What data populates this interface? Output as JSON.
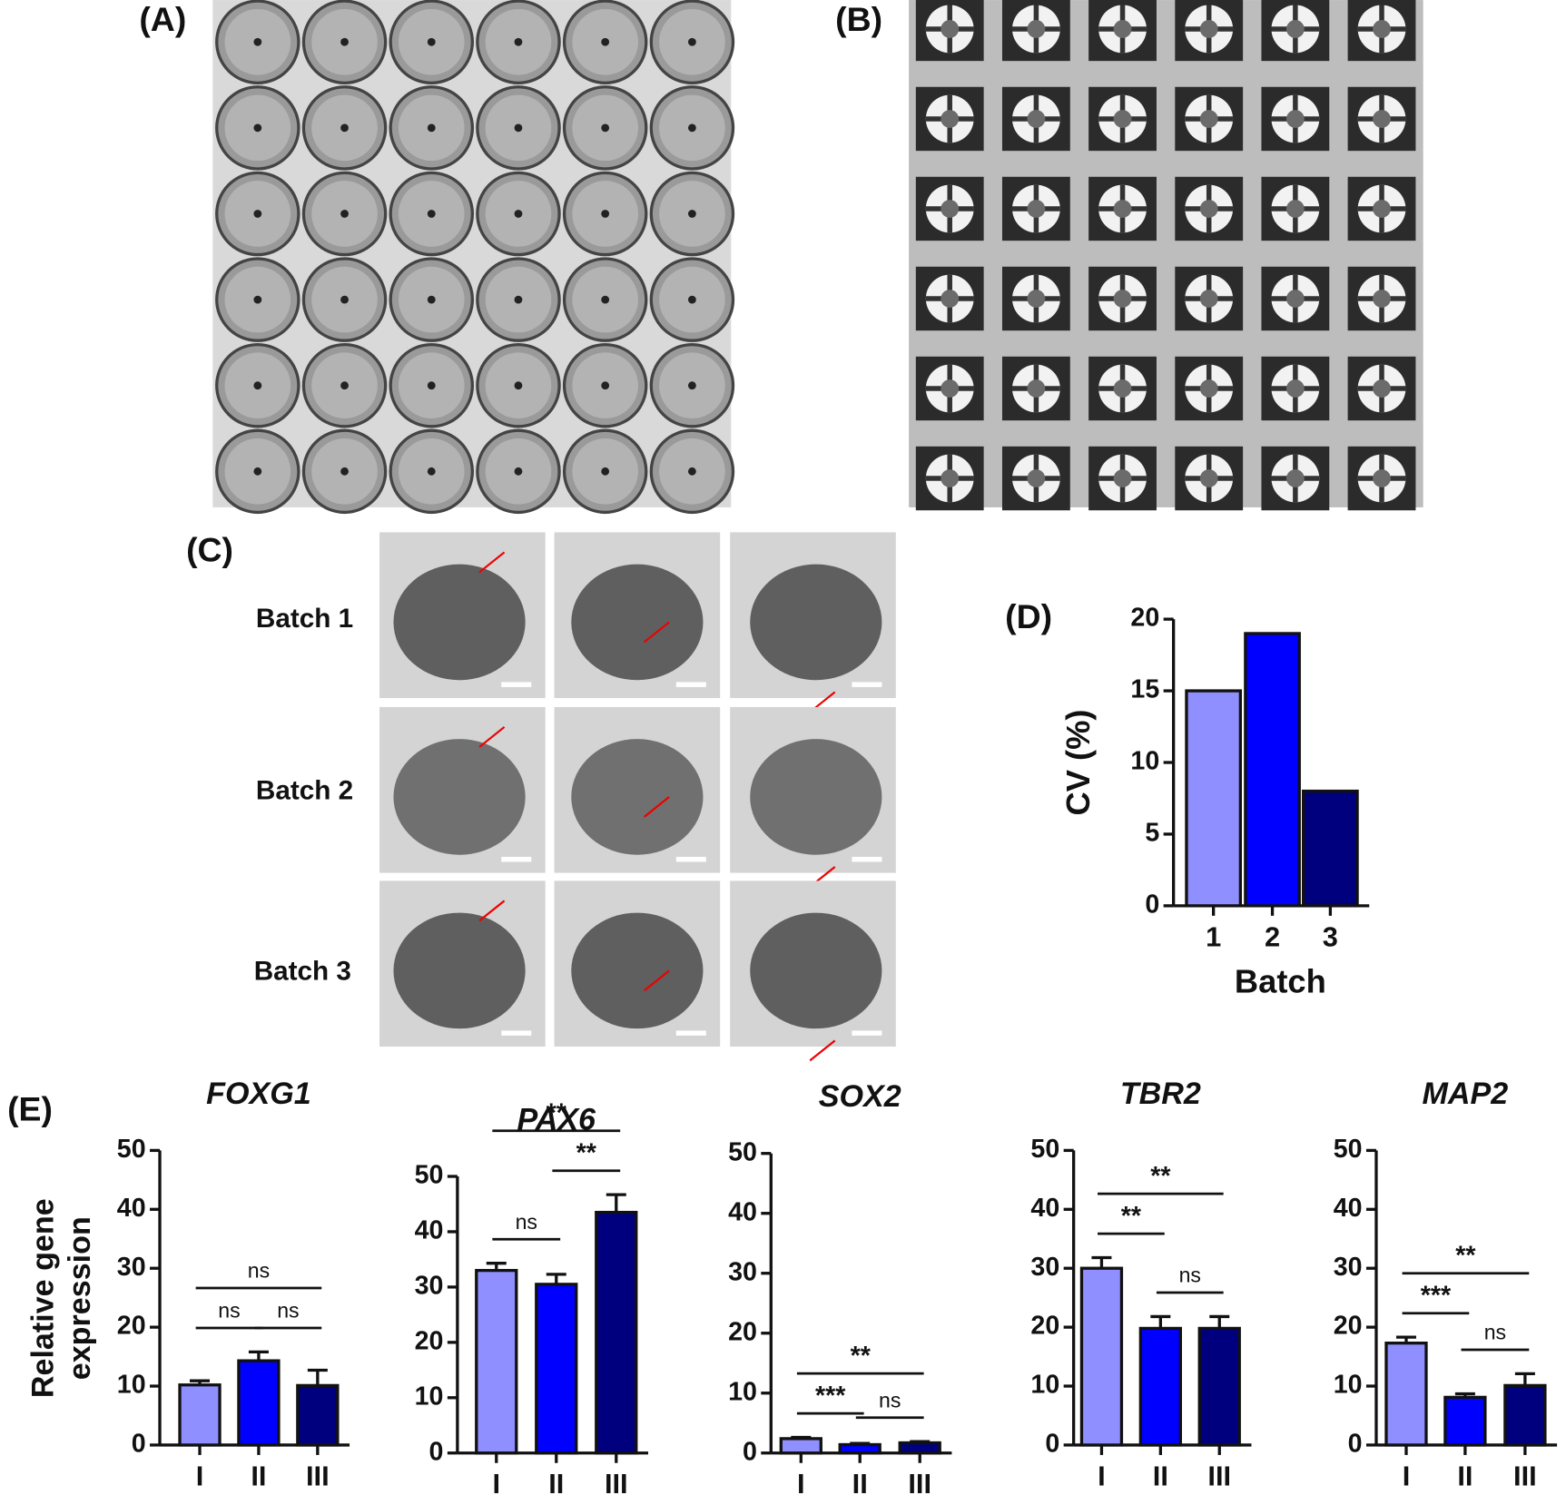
{
  "panels": {
    "a": "(A)",
    "b": "(B)",
    "c": "(C)",
    "d": "(D)",
    "e": "(E)",
    "batches": [
      "Batch 1",
      "Batch 2",
      "Batch 3"
    ],
    "e_ylabel": [
      "Relative gene",
      "expression"
    ]
  },
  "chart_data": [
    {
      "type": "bar",
      "categories": [
        "1",
        "2",
        "3"
      ],
      "values": [
        15,
        19,
        8
      ],
      "colors": [
        "#8f8fff",
        "#0000ff",
        "#00007f"
      ],
      "ylim": [
        0,
        20
      ],
      "yticks": [
        0,
        5,
        10,
        15,
        20
      ],
      "xlabel": "Batch",
      "ylabel": "CV (%)"
    },
    {
      "type": "bar",
      "title": "FOXG1",
      "categories": [
        "I",
        "II",
        "III"
      ],
      "values": [
        10.2,
        14.3,
        10.1
      ],
      "errors": [
        0.7,
        1.5,
        2.6
      ],
      "colors": [
        "#8f8fff",
        "#0000ff",
        "#00007f"
      ],
      "ylim": [
        0,
        50
      ],
      "yticks": [
        0,
        10,
        20,
        30,
        40,
        50
      ],
      "comparisons": [
        {
          "pair": [
            0,
            1
          ],
          "label": "ns"
        },
        {
          "pair": [
            1,
            2
          ],
          "label": "ns"
        },
        {
          "pair": [
            0,
            2
          ],
          "label": "ns"
        }
      ]
    },
    {
      "type": "bar",
      "title": "PAX6",
      "categories": [
        "I",
        "II",
        "III"
      ],
      "values": [
        33,
        30.5,
        43.5
      ],
      "errors": [
        1.3,
        1.8,
        3.2
      ],
      "colors": [
        "#8f8fff",
        "#0000ff",
        "#00007f"
      ],
      "ylim": [
        0,
        50
      ],
      "yticks": [
        0,
        10,
        20,
        30,
        40,
        50
      ],
      "comparisons": [
        {
          "pair": [
            0,
            1
          ],
          "label": "ns"
        },
        {
          "pair": [
            1,
            2
          ],
          "label": "**"
        },
        {
          "pair": [
            0,
            2
          ],
          "label": "**"
        }
      ]
    },
    {
      "type": "bar",
      "title": "SOX2",
      "categories": [
        "I",
        "II",
        "III"
      ],
      "values": [
        2.4,
        1.4,
        1.7
      ],
      "errors": [
        0.2,
        0.2,
        0.2
      ],
      "colors": [
        "#8f8fff",
        "#0000ff",
        "#00007f"
      ],
      "ylim": [
        0,
        50
      ],
      "yticks": [
        0,
        10,
        20,
        30,
        40,
        50
      ],
      "comparisons": [
        {
          "pair": [
            0,
            1
          ],
          "label": "***"
        },
        {
          "pair": [
            1,
            2
          ],
          "label": "ns"
        },
        {
          "pair": [
            0,
            2
          ],
          "label": "**"
        }
      ]
    },
    {
      "type": "bar",
      "title": "TBR2",
      "categories": [
        "I",
        "II",
        "III"
      ],
      "values": [
        30,
        19.8,
        19.8
      ],
      "errors": [
        1.8,
        2,
        2
      ],
      "colors": [
        "#8f8fff",
        "#0000ff",
        "#00007f"
      ],
      "ylim": [
        0,
        50
      ],
      "yticks": [
        0,
        10,
        20,
        30,
        40,
        50
      ],
      "comparisons": [
        {
          "pair": [
            0,
            1
          ],
          "label": "**"
        },
        {
          "pair": [
            1,
            2
          ],
          "label": "ns"
        },
        {
          "pair": [
            0,
            2
          ],
          "label": "**"
        }
      ]
    },
    {
      "type": "bar",
      "title": "MAP2",
      "categories": [
        "I",
        "II",
        "III"
      ],
      "values": [
        17.3,
        8.1,
        10.1
      ],
      "errors": [
        1,
        0.6,
        2
      ],
      "colors": [
        "#8f8fff",
        "#0000ff",
        "#00007f"
      ],
      "ylim": [
        0,
        50
      ],
      "yticks": [
        0,
        10,
        20,
        30,
        40,
        50
      ],
      "comparisons": [
        {
          "pair": [
            0,
            1
          ],
          "label": "***"
        },
        {
          "pair": [
            1,
            2
          ],
          "label": "ns"
        },
        {
          "pair": [
            0,
            2
          ],
          "label": "**"
        }
      ]
    }
  ]
}
